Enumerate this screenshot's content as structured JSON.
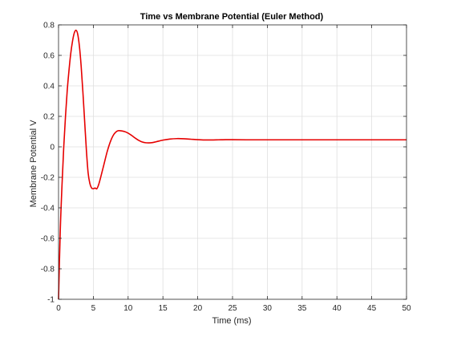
{
  "chart_data": {
    "type": "line",
    "title": "Time vs Membrane Potential (Euler Method)",
    "xlabel": "Time (ms)",
    "ylabel": "Membrane Potential V",
    "xlim": [
      0,
      50
    ],
    "ylim": [
      -1,
      0.8
    ],
    "xticks": [
      0,
      5,
      10,
      15,
      20,
      25,
      30,
      35,
      40,
      45,
      50
    ],
    "yticks": [
      -1,
      -0.8,
      -0.6,
      -0.4,
      -0.2,
      0,
      0.2,
      0.4,
      0.6,
      0.8
    ],
    "xtick_labels": [
      "0",
      "5",
      "10",
      "15",
      "20",
      "25",
      "30",
      "35",
      "40",
      "45",
      "50"
    ],
    "ytick_labels": [
      "-1",
      "-0.8",
      "-0.6",
      "-0.4",
      "-0.2",
      "0",
      "0.2",
      "0.4",
      "0.6",
      "0.8"
    ],
    "grid": true,
    "series": [
      {
        "color": "#e60000",
        "x": [
          0,
          0.25,
          0.5,
          0.75,
          1.0,
          1.25,
          1.5,
          1.75,
          2.0,
          2.25,
          2.5,
          2.75,
          3.0,
          3.25,
          3.5,
          3.75,
          4.0,
          4.25,
          4.5,
          4.75,
          5.0,
          5.25,
          5.5,
          5.75,
          6.0,
          6.5,
          7.0,
          7.5,
          8.0,
          8.5,
          9.0,
          9.5,
          10.0,
          10.5,
          11.0,
          11.5,
          12.0,
          12.5,
          13.0,
          13.5,
          14.0,
          15.0,
          16.0,
          17.0,
          18.0,
          19.0,
          20.0,
          21.0,
          22.0,
          23.0,
          24.0,
          25.0,
          27.0,
          30.0,
          35.0,
          40.0,
          45.0,
          50.0
        ],
        "y": [
          -1.0,
          -0.55,
          -0.25,
          0.0,
          0.2,
          0.37,
          0.5,
          0.61,
          0.69,
          0.745,
          0.765,
          0.74,
          0.66,
          0.53,
          0.36,
          0.17,
          -0.02,
          -0.17,
          -0.24,
          -0.27,
          -0.275,
          -0.27,
          -0.275,
          -0.25,
          -0.21,
          -0.12,
          -0.03,
          0.04,
          0.085,
          0.105,
          0.105,
          0.1,
          0.09,
          0.075,
          0.058,
          0.043,
          0.032,
          0.027,
          0.026,
          0.028,
          0.033,
          0.044,
          0.051,
          0.054,
          0.053,
          0.05,
          0.047,
          0.045,
          0.045,
          0.046,
          0.047,
          0.047,
          0.046,
          0.046,
          0.046,
          0.046,
          0.046,
          0.046
        ]
      }
    ]
  }
}
